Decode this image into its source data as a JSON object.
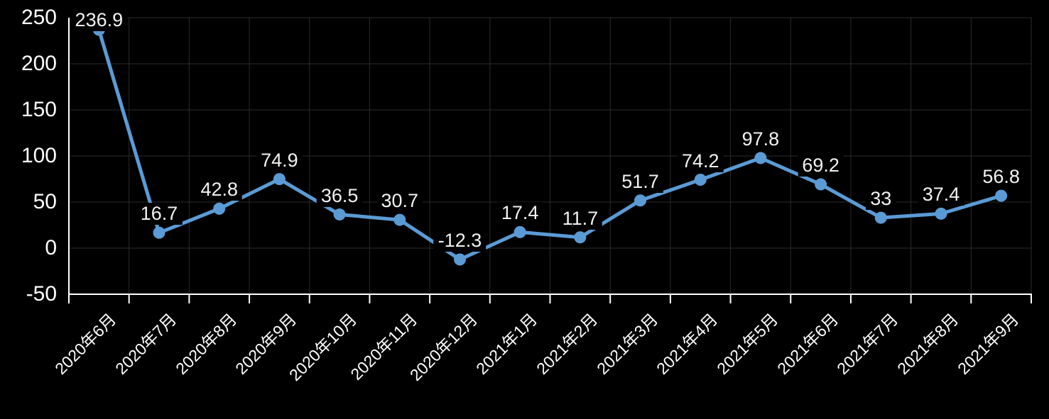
{
  "chart_data": {
    "type": "line",
    "categories": [
      "2020年6月",
      "2020年7月",
      "2020年8月",
      "2020年9月",
      "2020年10月",
      "2020年11月",
      "2020年12月",
      "2021年1月",
      "2021年2月",
      "2021年3月",
      "2021年4月",
      "2021年5月",
      "2021年6月",
      "2021年7月",
      "2021年8月",
      "2021年9月"
    ],
    "values": [
      236.9,
      16.7,
      42.8,
      74.9,
      36.5,
      30.7,
      -12.3,
      17.4,
      11.7,
      51.7,
      74.2,
      97.8,
      69.2,
      33,
      37.4,
      56.8
    ],
    "data_labels": [
      "236.9",
      "16.7",
      "42.8",
      "74.9",
      "36.5",
      "30.7",
      "-12.3",
      "17.4",
      "11.7",
      "51.7",
      "74.2",
      "97.8",
      "69.2",
      "33",
      "37.4",
      "56.8"
    ],
    "title": "",
    "xlabel": "",
    "ylabel": "",
    "y_ticks": [
      250,
      200,
      150,
      100,
      50,
      0,
      -50
    ],
    "ylim": [
      -50,
      250
    ],
    "grid": true,
    "legend_position": "none",
    "marker": "circle",
    "colors": {
      "background": "#000000",
      "line": "#5B9BD5",
      "marker": "#5B9BD5",
      "gridline": "#2B2B2B",
      "axis": "#FFFFFF",
      "data_label_text": "#F2F2F2",
      "axis_label_text": "#FFFFFF"
    }
  }
}
